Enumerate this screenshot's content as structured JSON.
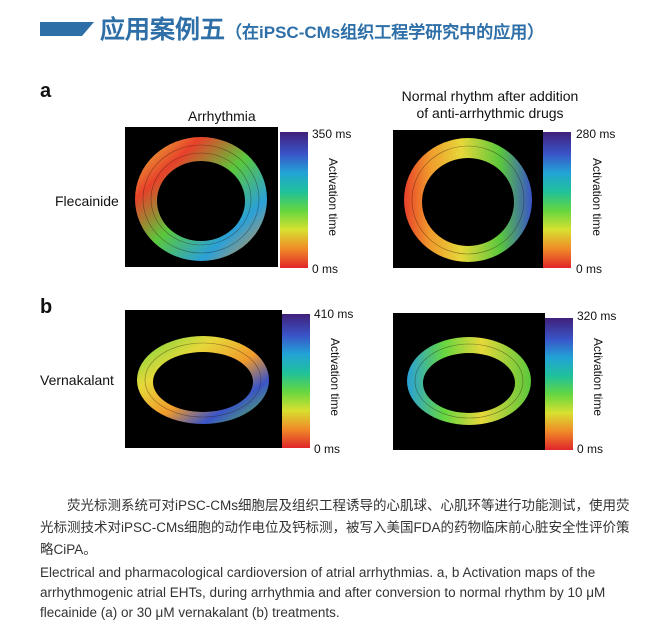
{
  "header": {
    "title": "应用案例五",
    "subtitle": "（在iPSC-CMs组织工程学研究中的应用）"
  },
  "figure": {
    "columns": [
      {
        "title": "Arrhythmia"
      },
      {
        "title_line1": "Normal rhythm after addition",
        "title_line2": "of anti-arrhythmic drugs"
      }
    ],
    "rows": [
      {
        "letter": "a",
        "label": "Flecainide",
        "max_left": "350 ms",
        "max_right": "280 ms",
        "min": "0 ms"
      },
      {
        "letter": "b",
        "label": "Vernakalant",
        "max_left": "410 ms",
        "max_right": "320 ms",
        "min": "0 ms"
      }
    ],
    "colorbar_label": "Activation time"
  },
  "caption": {
    "chinese": "荧光标测系统可对iPSC-CMs细胞层及组织工程诱导的心肌球、心肌环等进行功能测试，使用荧光标测技术对iPSC-CMs细胞的动作电位及钙标测，被写入美国FDA的药物临床前心脏安全性评价策略CiPA。",
    "english": "Electrical and pharmacological cardioversion of atrial arrhythmias. a, b Activation maps of the arrhythmogenic atrial EHTs, during arrhythmia and after conversion to normal rhythm by 10 μM flecainide (a) or 30 μM vernakalant (b) treatments."
  }
}
